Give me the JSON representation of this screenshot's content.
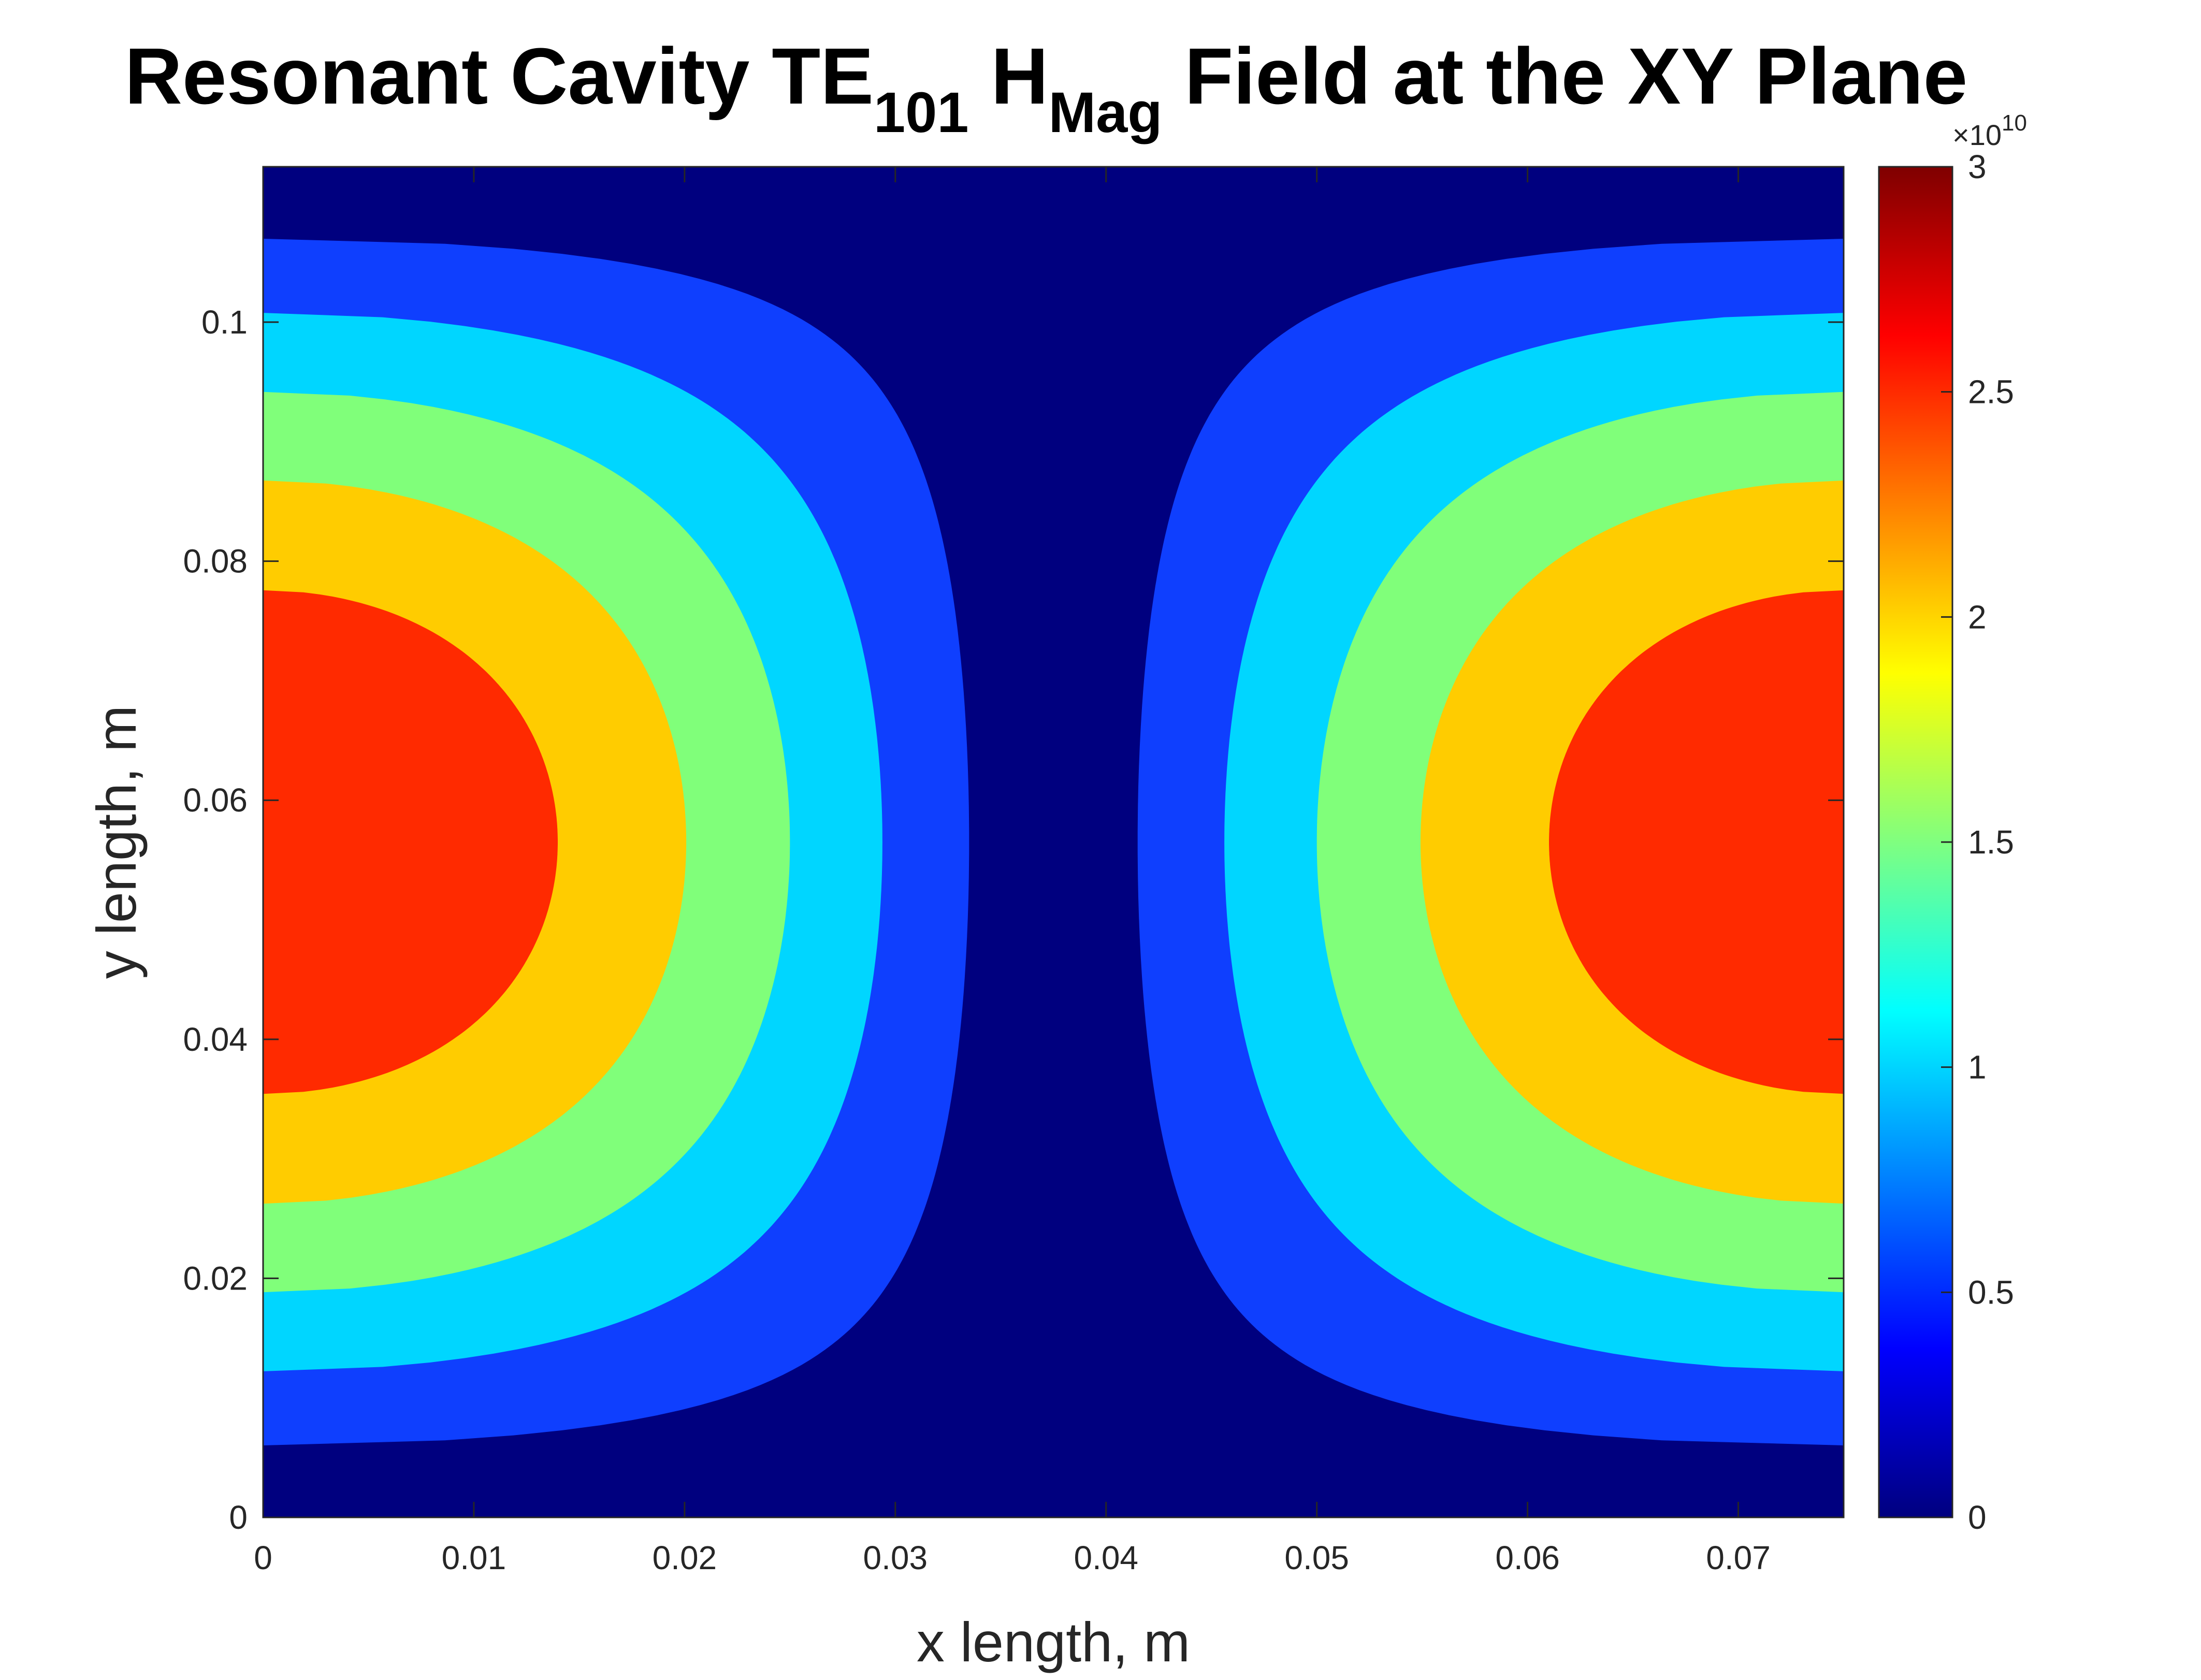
{
  "chart_data": {
    "type": "contourf",
    "title": {
      "parts": [
        {
          "text": "Resonant Cavity TE",
          "style": "normal"
        },
        {
          "text": "101",
          "style": "sub"
        },
        {
          "text": " H",
          "style": "normal"
        },
        {
          "text": "Mag",
          "style": "sub"
        },
        {
          "text": " Field at the XY Plane",
          "style": "normal"
        }
      ]
    },
    "xlabel": "x length, m",
    "ylabel": "y length, m",
    "xlim": [
      0,
      0.075
    ],
    "ylim": [
      0,
      0.113
    ],
    "xticks": [
      0,
      0.01,
      0.02,
      0.03,
      0.04,
      0.05,
      0.06,
      0.07
    ],
    "xtick_labels": [
      "0",
      "0.01",
      "0.02",
      "0.03",
      "0.04",
      "0.05",
      "0.06",
      "0.07"
    ],
    "yticks": [
      0,
      0.02,
      0.04,
      0.06,
      0.08,
      0.1
    ],
    "ytick_labels": [
      "0",
      "0.02",
      "0.04",
      "0.06",
      "0.08",
      "0.1"
    ],
    "field_model": "Hmag(x,y) = 3e10 * |cos(pi*x/0.075)| * sin(pi*y/0.113)",
    "field_max": 30000000000.0,
    "contour_levels": [
      0,
      5000000000.0,
      10000000000.0,
      15000000000.0,
      20000000000.0,
      25000000000.0,
      30000000000.0
    ],
    "contour_band_colors": [
      "#00007f",
      "#0f3ffe",
      "#00d6ff",
      "#80ff7a",
      "#ffcc00",
      "#ff2a00",
      "#800000"
    ],
    "colorbar": {
      "ticks": [
        0,
        0.5,
        1,
        1.5,
        2,
        2.5,
        3
      ],
      "tick_labels": [
        "0",
        "0.5",
        "1",
        "1.5",
        "2",
        "2.5",
        "3"
      ],
      "exponent_base": "×10",
      "exponent_power": "10",
      "colormap": "jet",
      "range": [
        0,
        3
      ]
    },
    "grid": false
  }
}
